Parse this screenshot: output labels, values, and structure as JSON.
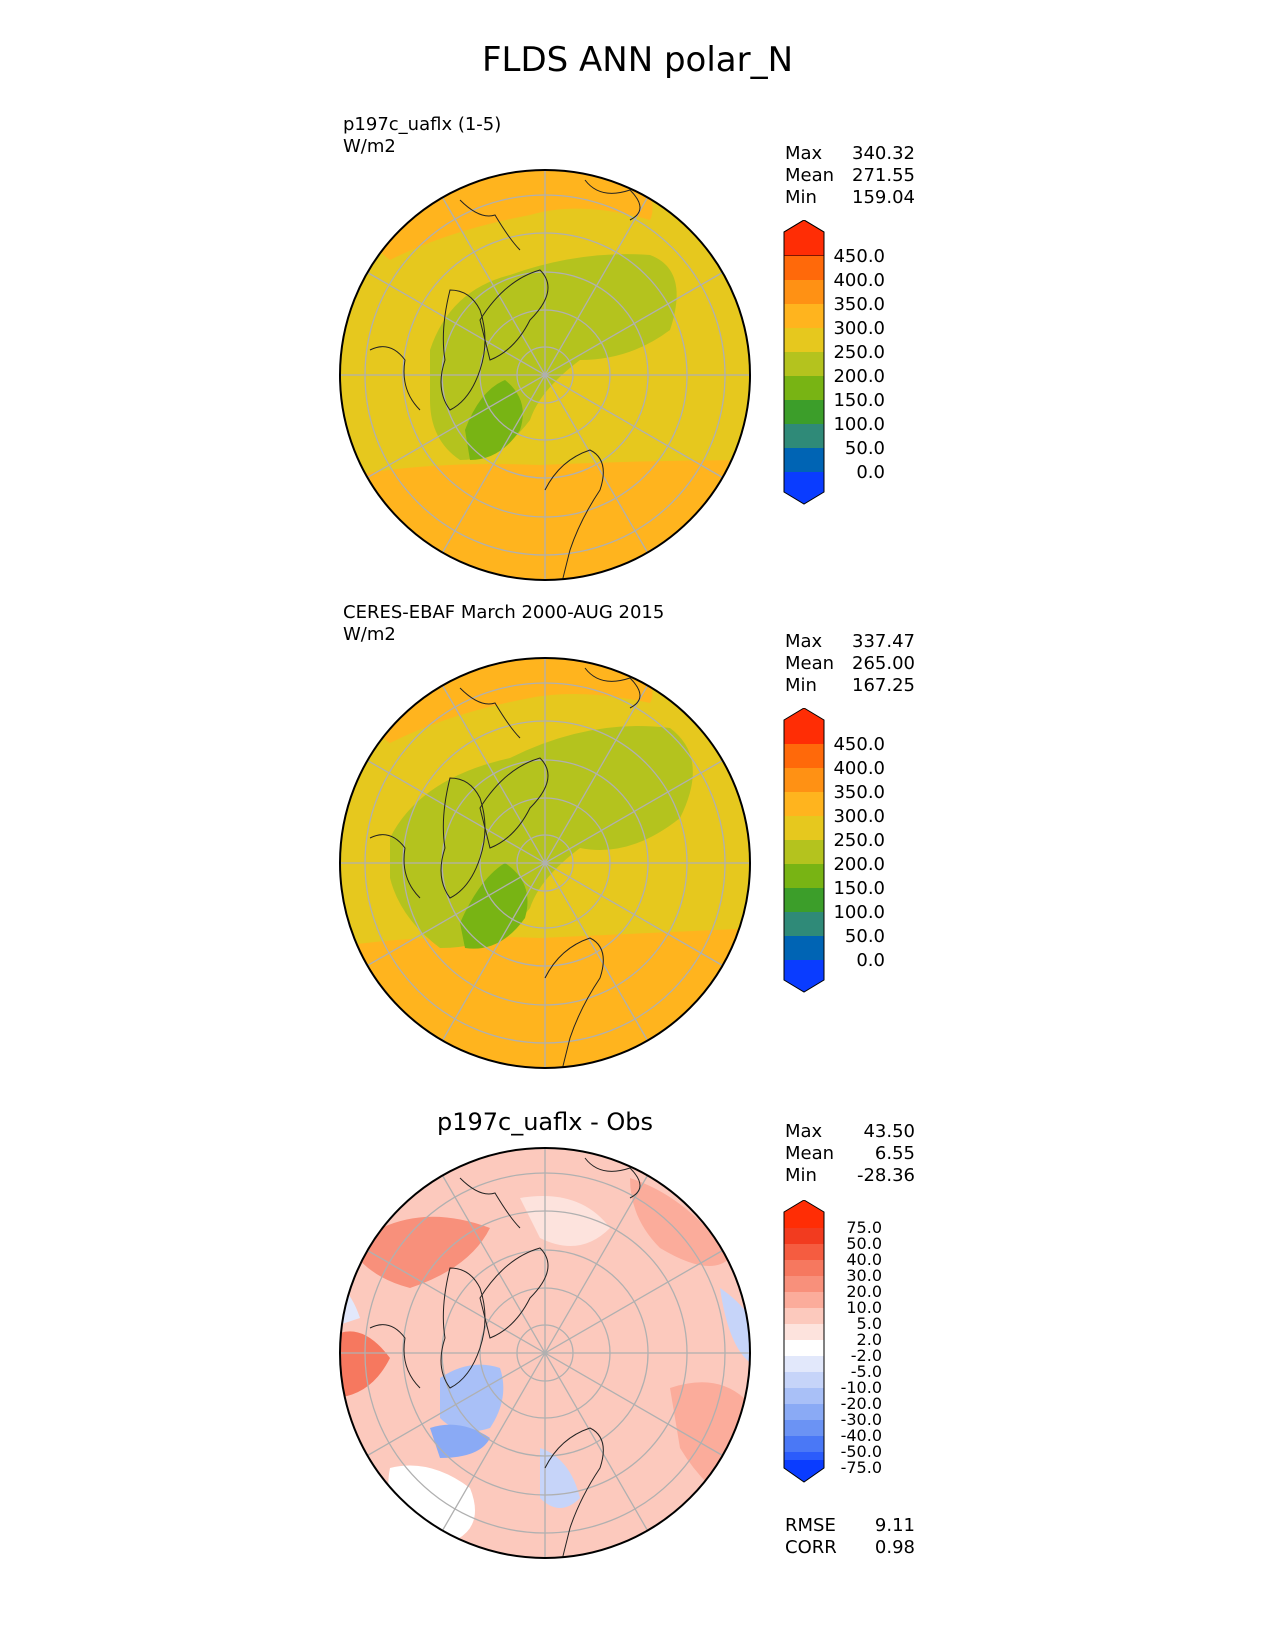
{
  "figure": {
    "title": "FLDS ANN polar_N"
  },
  "panels": [
    {
      "id": "test",
      "title_line1": "p197c_uaflx (1-5)",
      "title_line2": "W/m2",
      "stats": {
        "max_label": "Max",
        "max_value": "340.32",
        "mean_label": "Mean",
        "mean_value": "271.55",
        "min_label": "Min",
        "min_value": "159.04"
      },
      "colorbar_ticks": [
        "450.0",
        "400.0",
        "350.0",
        "300.0",
        "250.0",
        "200.0",
        "150.0",
        "100.0",
        "50.0",
        "0.0"
      ]
    },
    {
      "id": "reference",
      "title_line1": "CERES-EBAF March 2000-AUG 2015",
      "title_line2": "W/m2",
      "stats": {
        "max_label": "Max",
        "max_value": "337.47",
        "mean_label": "Mean",
        "mean_value": "265.00",
        "min_label": "Min",
        "min_value": "167.25"
      },
      "colorbar_ticks": [
        "450.0",
        "400.0",
        "350.0",
        "300.0",
        "250.0",
        "200.0",
        "150.0",
        "100.0",
        "50.0",
        "0.0"
      ]
    },
    {
      "id": "difference",
      "title_line1": "p197c_uaflx - Obs",
      "stats": {
        "max_label": "Max",
        "max_value": "43.50",
        "mean_label": "Mean",
        "mean_value": "6.55",
        "min_label": "Min",
        "min_value": "-28.36"
      },
      "colorbar_ticks": [
        "75.0",
        "50.0",
        "40.0",
        "30.0",
        "20.0",
        "10.0",
        "5.0",
        "2.0",
        "-2.0",
        "-5.0",
        "-10.0",
        "-20.0",
        "-30.0",
        "-40.0",
        "-50.0",
        "-75.0"
      ],
      "metrics": {
        "rmse_label": "RMSE",
        "rmse_value": "9.11",
        "corr_label": "CORR",
        "corr_value": "0.98"
      }
    }
  ],
  "colors": {
    "abs_scale": [
      "#0a3cff",
      "#0064b4",
      "#2f8a78",
      "#3c9e2a",
      "#78b414",
      "#b4c31e",
      "#e6c81e",
      "#ffb41e",
      "#ff9114",
      "#ff690a",
      "#ff2d05"
    ],
    "diff_scale": [
      "#0a3cff",
      "#2b5cfb",
      "#4a78f6",
      "#6b93f4",
      "#8aaaf5",
      "#a9c0f7",
      "#c6d4f9",
      "#e2e8fb",
      "#ffffff",
      "#fde3dd",
      "#fcc9bd",
      "#fbac9b",
      "#f8907b",
      "#f6785f",
      "#f55c40",
      "#f23b1f",
      "#ff2d05"
    ]
  }
}
